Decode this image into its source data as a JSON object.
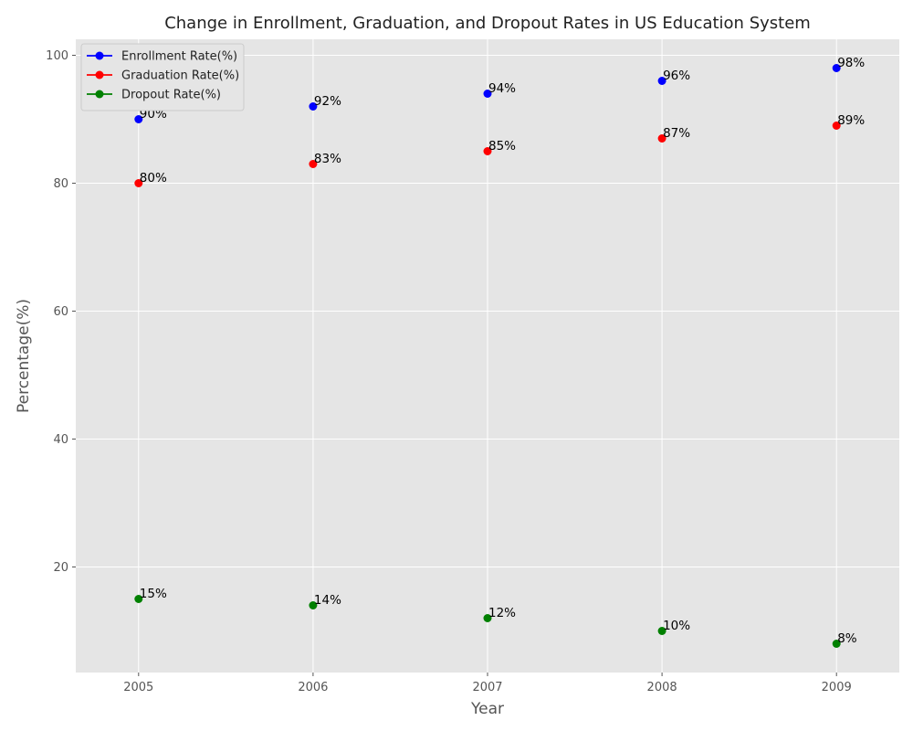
{
  "chart_data": {
    "type": "scatter",
    "title": "Change in Enrollment, Graduation, and Dropout Rates in US Education System",
    "xlabel": "Year",
    "ylabel": "Percentage(%)",
    "x": [
      "2005",
      "2006",
      "2007",
      "2008",
      "2009"
    ],
    "ylim": [
      3.5,
      102.5
    ],
    "yticks": [
      "20",
      "40",
      "60",
      "80",
      "100"
    ],
    "grid": true,
    "legend_position": "top-left",
    "value_suffix": "%",
    "series": [
      {
        "name": "Enrollment Rate(%)",
        "color": "#0000ff",
        "values": [
          90,
          92,
          94,
          96,
          98
        ]
      },
      {
        "name": "Graduation Rate(%)",
        "color": "#ff0000",
        "values": [
          80,
          83,
          85,
          87,
          89
        ]
      },
      {
        "name": "Dropout Rate(%)",
        "color": "#008000",
        "values": [
          15,
          14,
          12,
          10,
          8
        ]
      }
    ]
  }
}
